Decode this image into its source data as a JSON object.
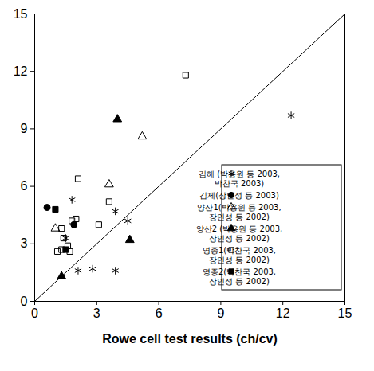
{
  "chart_data": {
    "type": "scatter",
    "x_label": "Rowe cell test results (ch/cv)",
    "xlim": [
      0,
      15
    ],
    "ylim": [
      0,
      15
    ],
    "xticks": [
      0,
      3,
      6,
      9,
      12,
      15
    ],
    "yticks": [
      0,
      3,
      6,
      9,
      12,
      15
    ],
    "grid": false,
    "legend": "bottom-right",
    "reference_line": {
      "x": [
        0,
        15
      ],
      "y": [
        0,
        15
      ],
      "color": "#000000"
    },
    "series": [
      {
        "name": "김해 (박용원 등 2003, 박찬국 2003)",
        "color": "#000000",
        "marker": "asterisk",
        "x": [
          1.8,
          1.5,
          2.1,
          2.8,
          3.9,
          4.5,
          3.9,
          12.4
        ],
        "values": [
          5.3,
          3.3,
          1.6,
          1.7,
          4.7,
          4.2,
          1.6,
          9.7
        ]
      },
      {
        "name": "김제(장인성 등 2003)",
        "color": "#000000",
        "marker": "circle",
        "x": [
          0.6,
          1.9
        ],
        "values": [
          4.9,
          4.0
        ]
      },
      {
        "name": "양산1(박용원 등 2003, 장인성 등 2002)",
        "color": "#000000",
        "marker": "triangle-open",
        "x": [
          1.0,
          3.6,
          5.2
        ],
        "values": [
          3.8,
          6.1,
          8.6
        ]
      },
      {
        "name": "양산2 (박용원 등 2003, 장인성 등 2002)",
        "color": "#000000",
        "marker": "triangle",
        "x": [
          1.3,
          4.0,
          4.6
        ],
        "values": [
          1.3,
          9.5,
          3.2
        ]
      },
      {
        "name": "영종1(박찬국 2003, 장인성 등 2002)",
        "color": "#000000",
        "marker": "square-open",
        "x": [
          1.1,
          1.3,
          1.4,
          1.3,
          1.6,
          1.7,
          1.8,
          2.0,
          2.1,
          3.1,
          3.6,
          7.3
        ],
        "values": [
          2.6,
          2.7,
          3.3,
          3.8,
          2.9,
          2.6,
          4.2,
          4.3,
          6.4,
          4.0,
          5.2,
          11.8
        ]
      },
      {
        "name": "영종2(박찬국 2003, 장인성 등 2002)",
        "color": "#000000",
        "marker": "square",
        "x": [
          1.0,
          1.5
        ],
        "values": [
          4.8,
          2.7
        ]
      }
    ]
  }
}
